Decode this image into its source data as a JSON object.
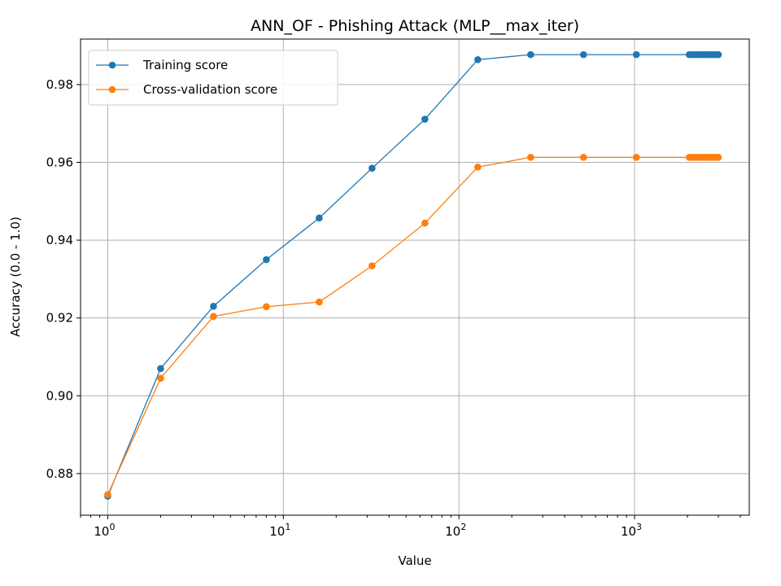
{
  "chart_data": {
    "type": "line",
    "title": "ANN_OF - Phishing Attack (MLP__max_iter)",
    "xlabel": "Value",
    "ylabel": "Accuracy (0.0 - 1.0)",
    "xscale": "log",
    "xlim": [
      0.7,
      4500
    ],
    "ylim": [
      0.8693,
      0.9917
    ],
    "grid": true,
    "legend_position": "top-left",
    "yticks": [
      "0.88",
      "0.90",
      "0.92",
      "0.94",
      "0.96",
      "0.98"
    ],
    "xticks": [
      {
        "value": 1,
        "base": "10",
        "exp": "0"
      },
      {
        "value": 10,
        "base": "10",
        "exp": "1"
      },
      {
        "value": 100,
        "base": "10",
        "exp": "2"
      },
      {
        "value": 1000,
        "base": "10",
        "exp": "3"
      }
    ],
    "x": [
      1,
      2,
      4,
      8,
      16,
      32,
      64,
      128,
      256,
      512,
      1024,
      2048,
      2096,
      2176,
      2256,
      2336,
      2416,
      2496,
      2576,
      2656,
      2736,
      2816,
      2896,
      2976,
      3000
    ],
    "series": [
      {
        "name": "Training score",
        "color": "#1f77b4",
        "values": [
          0.8742,
          0.907,
          0.923,
          0.935,
          0.9457,
          0.9585,
          0.9711,
          0.9864,
          0.9877,
          0.9877,
          0.9877,
          0.9877,
          0.9877,
          0.9877,
          0.9877,
          0.9877,
          0.9877,
          0.9877,
          0.9877,
          0.9877,
          0.9877,
          0.9877,
          0.9877,
          0.9877,
          0.9877
        ]
      },
      {
        "name": "Cross-validation score",
        "color": "#ff7f0e",
        "values": [
          0.8746,
          0.9045,
          0.9204,
          0.9229,
          0.9241,
          0.9334,
          0.9444,
          0.9588,
          0.9613,
          0.9613,
          0.9613,
          0.9613,
          0.9613,
          0.9613,
          0.9613,
          0.9613,
          0.9613,
          0.9613,
          0.9613,
          0.9613,
          0.9613,
          0.9613,
          0.9613,
          0.9613,
          0.9613
        ]
      }
    ]
  }
}
